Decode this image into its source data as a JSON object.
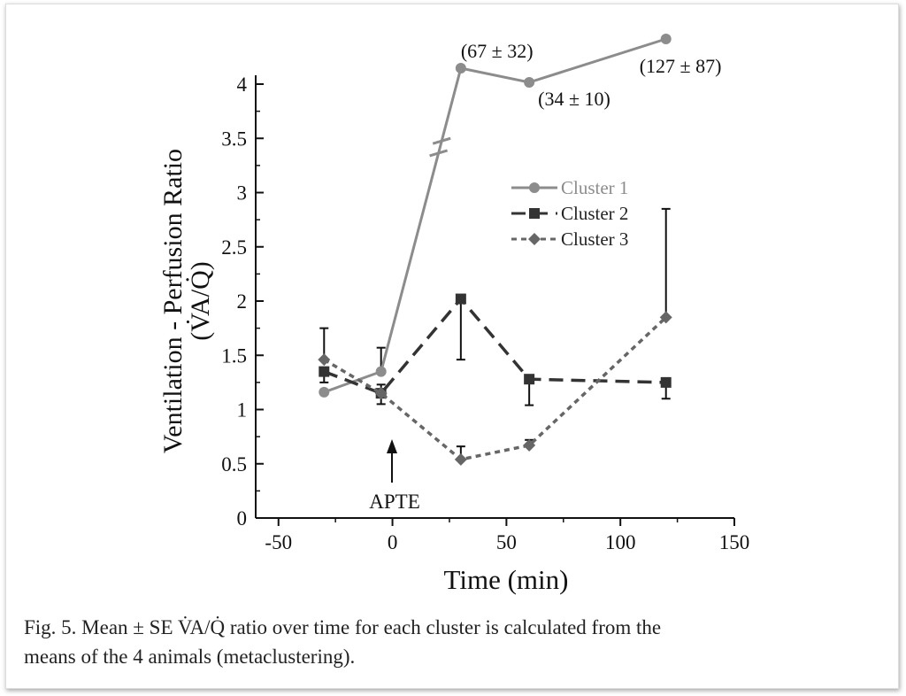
{
  "chart_data": {
    "type": "line",
    "xlabel": "Time (min)",
    "ylabel_line1": "Ventilation - Perfusion Ratio",
    "ylabel_line2": "(V̇A/Q̇)",
    "xlim": [
      -60,
      150
    ],
    "ylim": [
      0,
      4
    ],
    "y_axis_break": true,
    "x_ticks": [
      -50,
      0,
      50,
      100,
      150
    ],
    "x_tick_labels": [
      "-50",
      "0",
      "50",
      "100",
      "150"
    ],
    "y_ticks": [
      0,
      0.5,
      1,
      1.5,
      2,
      2.5,
      3,
      3.5,
      4
    ],
    "y_tick_labels": [
      "0",
      "0.5",
      "1",
      "1.5",
      "2",
      "2.5",
      "3",
      "3.5",
      "4"
    ],
    "grid": false,
    "legend_position": "upper-center",
    "series": [
      {
        "name": "Cluster 1",
        "color": "#8c8c8c",
        "line": "solid",
        "marker": "circle",
        "x": [
          -30,
          -5,
          30,
          60,
          120
        ],
        "y": [
          1.16,
          1.35,
          67,
          34,
          127
        ],
        "error_upper": [
          null,
          1.57,
          null,
          null,
          null
        ],
        "annotations": [
          "",
          "",
          "(67 ± 32)",
          "(34 ± 10)",
          "(127 ± 87)"
        ]
      },
      {
        "name": "Cluster 2",
        "color": "#333333",
        "line": "dashed",
        "marker": "square",
        "x": [
          -30,
          -5,
          30,
          60,
          120
        ],
        "y": [
          1.35,
          1.15,
          2.02,
          1.28,
          1.25
        ],
        "error_lower": [
          1.25,
          1.05,
          1.46,
          1.04,
          1.1
        ]
      },
      {
        "name": "Cluster 3",
        "color": "#666666",
        "line": "dotted",
        "marker": "diamond",
        "x": [
          -30,
          -5,
          30,
          60,
          120
        ],
        "y": [
          1.46,
          1.15,
          0.54,
          0.67,
          1.85
        ],
        "error_upper": [
          1.75,
          1.23,
          0.66,
          0.72,
          2.85
        ]
      }
    ],
    "arrow_annotation": {
      "label": "APTE",
      "x": 0
    }
  },
  "caption": {
    "line1": "Fig. 5.  Mean ± SE V̇A/Q̇ ratio over time for each cluster is calculated from the",
    "line2": "means of the 4 animals (metaclustering)."
  }
}
